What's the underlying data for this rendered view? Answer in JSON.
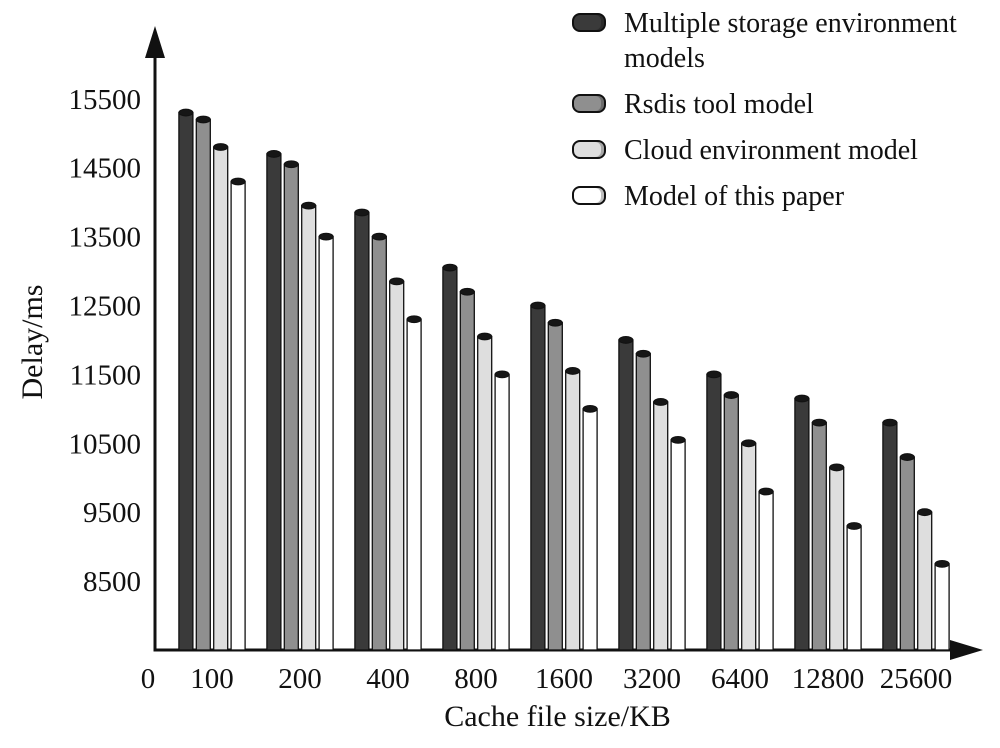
{
  "chart_data": {
    "type": "bar",
    "title": "",
    "xlabel": "Cache file size/KB",
    "ylabel": "Delay/ms",
    "x_origin_label": "0",
    "categories": [
      "100",
      "200",
      "400",
      "800",
      "1600",
      "3200",
      "6400",
      "12800",
      "25600"
    ],
    "y_ticks": [
      15500,
      14500,
      13500,
      12500,
      11500,
      10500,
      9500,
      8500
    ],
    "ylim": [
      7500,
      15800
    ],
    "grid": false,
    "legend_position": "top-right",
    "bar_style": "cylinder",
    "cap_color": "#161616",
    "axis_color": "#111111",
    "series": [
      {
        "name": "Multiple storage environment models",
        "color": "#3a3a3a",
        "values": [
          15300,
          14700,
          13850,
          13050,
          12500,
          12000,
          11500,
          11150,
          10800
        ]
      },
      {
        "name": "Rsdis tool model",
        "color": "#8f8f8f",
        "values": [
          15200,
          14550,
          13500,
          12700,
          12250,
          11800,
          11200,
          10800,
          10300
        ]
      },
      {
        "name": "Cloud environment model",
        "color": "#dedede",
        "values": [
          14800,
          13950,
          12850,
          12050,
          11550,
          11100,
          10500,
          10150,
          9500
        ]
      },
      {
        "name": "Model of this paper",
        "color": "#ffffff",
        "values": [
          14300,
          13500,
          12300,
          11500,
          11000,
          10550,
          9800,
          9300,
          8750
        ]
      }
    ]
  }
}
